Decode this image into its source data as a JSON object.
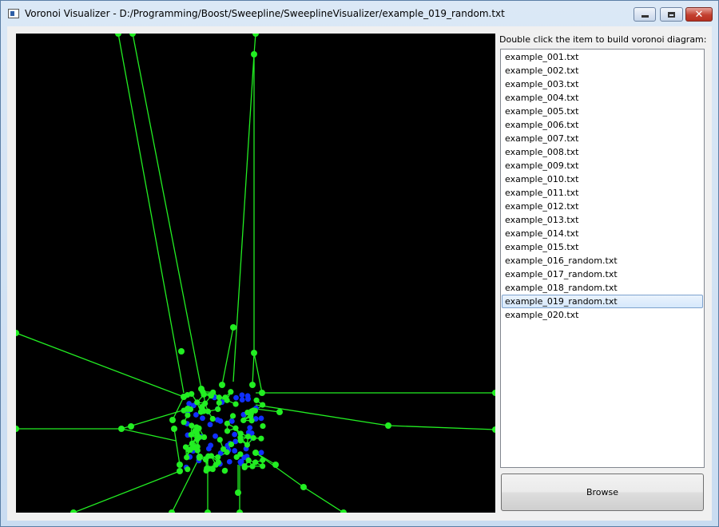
{
  "window": {
    "title": "Voronoi Visualizer - D:/Programming/Boost/Sweepline/SweeplineVisualizer/example_019_random.txt",
    "close_glyph": "✕"
  },
  "panel": {
    "label": "Double click the item to build voronoi diagram:",
    "files": [
      "example_001.txt",
      "example_002.txt",
      "example_003.txt",
      "example_004.txt",
      "example_005.txt",
      "example_006.txt",
      "example_007.txt",
      "example_008.txt",
      "example_009.txt",
      "example_010.txt",
      "example_011.txt",
      "example_012.txt",
      "example_013.txt",
      "example_014.txt",
      "example_015.txt",
      "example_016_random.txt",
      "example_017_random.txt",
      "example_018_random.txt",
      "example_019_random.txt",
      "example_020.txt"
    ],
    "selected": "example_019_random.txt",
    "browse_label": "Browse"
  },
  "colors": {
    "canvas_background": "#000000",
    "voronoi_edge": "#22ee22",
    "voronoi_vertex": "#22ee22",
    "input_site": "#1030ff",
    "selection": "#d6e8fb"
  }
}
